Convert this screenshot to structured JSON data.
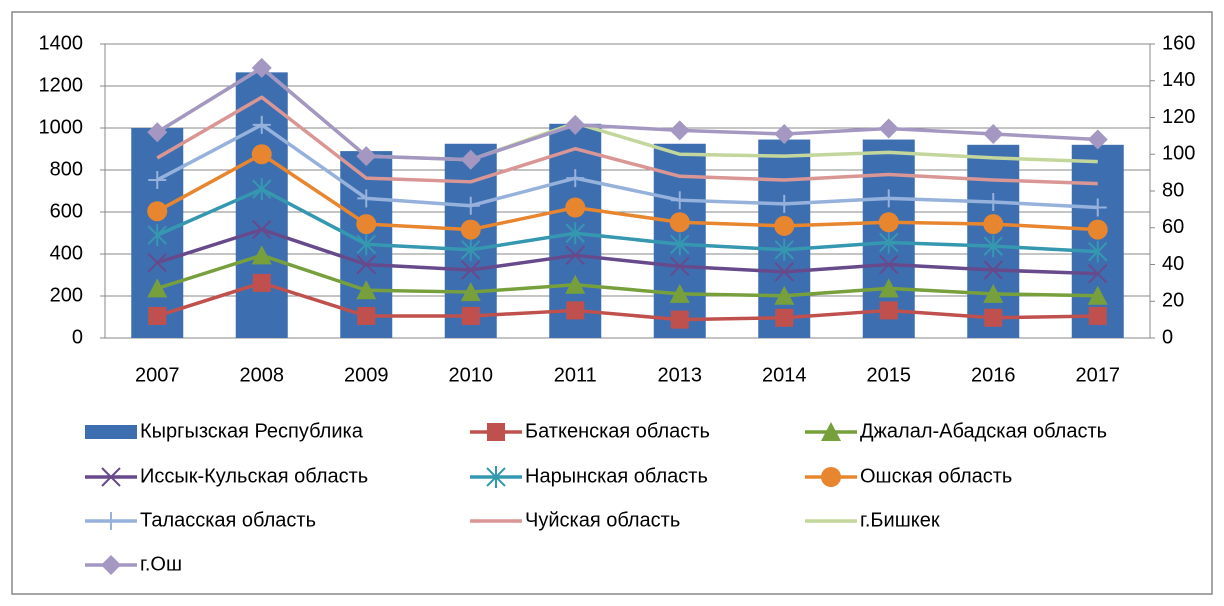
{
  "chart_data": {
    "type": "bar_line",
    "categories": [
      "2007",
      "2008",
      "2009",
      "2010",
      "2011",
      "2013",
      "2014",
      "2015",
      "2016",
      "2017"
    ],
    "ylim": [
      0,
      1400
    ],
    "yticks": [
      0,
      200,
      400,
      600,
      800,
      1000,
      1200,
      1400
    ],
    "y2lim": [
      0,
      160
    ],
    "y2ticks": [
      0,
      20,
      40,
      60,
      80,
      100,
      120,
      140,
      160
    ],
    "grid": true,
    "series": [
      {
        "name": "Кыргызская Республика",
        "color": "#3d6fb0",
        "kind": "bar",
        "values": [
          1000,
          1265,
          890,
          925,
          1020,
          925,
          945,
          945,
          920,
          920
        ]
      },
      {
        "name": "Баткенская область",
        "color": "#c0504d",
        "kind": "line",
        "marker": "square",
        "axis": "y2",
        "values": [
          12,
          30,
          12,
          12,
          15,
          10,
          11,
          15,
          11,
          12
        ]
      },
      {
        "name": "Джалал-Абадская область",
        "color": "#77a03c",
        "kind": "line",
        "marker": "triangle",
        "axis": "y2",
        "values": [
          27,
          45,
          26,
          25,
          29,
          24,
          23,
          27,
          24,
          23
        ]
      },
      {
        "name": "Иссык-Кульская область",
        "color": "#674a8c",
        "kind": "line",
        "marker": "x",
        "axis": "y2",
        "values": [
          41,
          59,
          40,
          37,
          45,
          39,
          36,
          40,
          37,
          35
        ]
      },
      {
        "name": "Нарынская область",
        "color": "#3598b0",
        "kind": "line",
        "marker": "star",
        "axis": "y2",
        "values": [
          56,
          81,
          51,
          48,
          57,
          51,
          48,
          52,
          50,
          47
        ]
      },
      {
        "name": "Ошская область",
        "color": "#e8852f",
        "kind": "line",
        "marker": "circle",
        "axis": "y2",
        "values": [
          69,
          100,
          62,
          59,
          71,
          63,
          61,
          63,
          62,
          59
        ]
      },
      {
        "name": "Таласская область",
        "color": "#95b1dc",
        "kind": "line",
        "marker": "plus",
        "axis": "y2",
        "values": [
          86,
          116,
          76,
          72,
          87,
          75,
          73,
          76,
          74,
          71
        ]
      },
      {
        "name": "Чуйская область",
        "color": "#d99694",
        "kind": "line",
        "marker": "none",
        "axis": "y2",
        "values": [
          98,
          131,
          87,
          85,
          103,
          88,
          86,
          89,
          86,
          84
        ]
      },
      {
        "name": "г.Бишкек",
        "color": "#c3d69b",
        "kind": "line",
        "marker": "none",
        "axis": "y2",
        "values": [
          112,
          147,
          99,
          97,
          117,
          100,
          99,
          101,
          98,
          96
        ]
      },
      {
        "name": "г.Ош",
        "color": "#a497c1",
        "kind": "line",
        "marker": "diamond",
        "axis": "y2",
        "values": [
          112,
          147,
          99,
          97,
          116,
          113,
          111,
          114,
          111,
          108
        ]
      }
    ]
  }
}
